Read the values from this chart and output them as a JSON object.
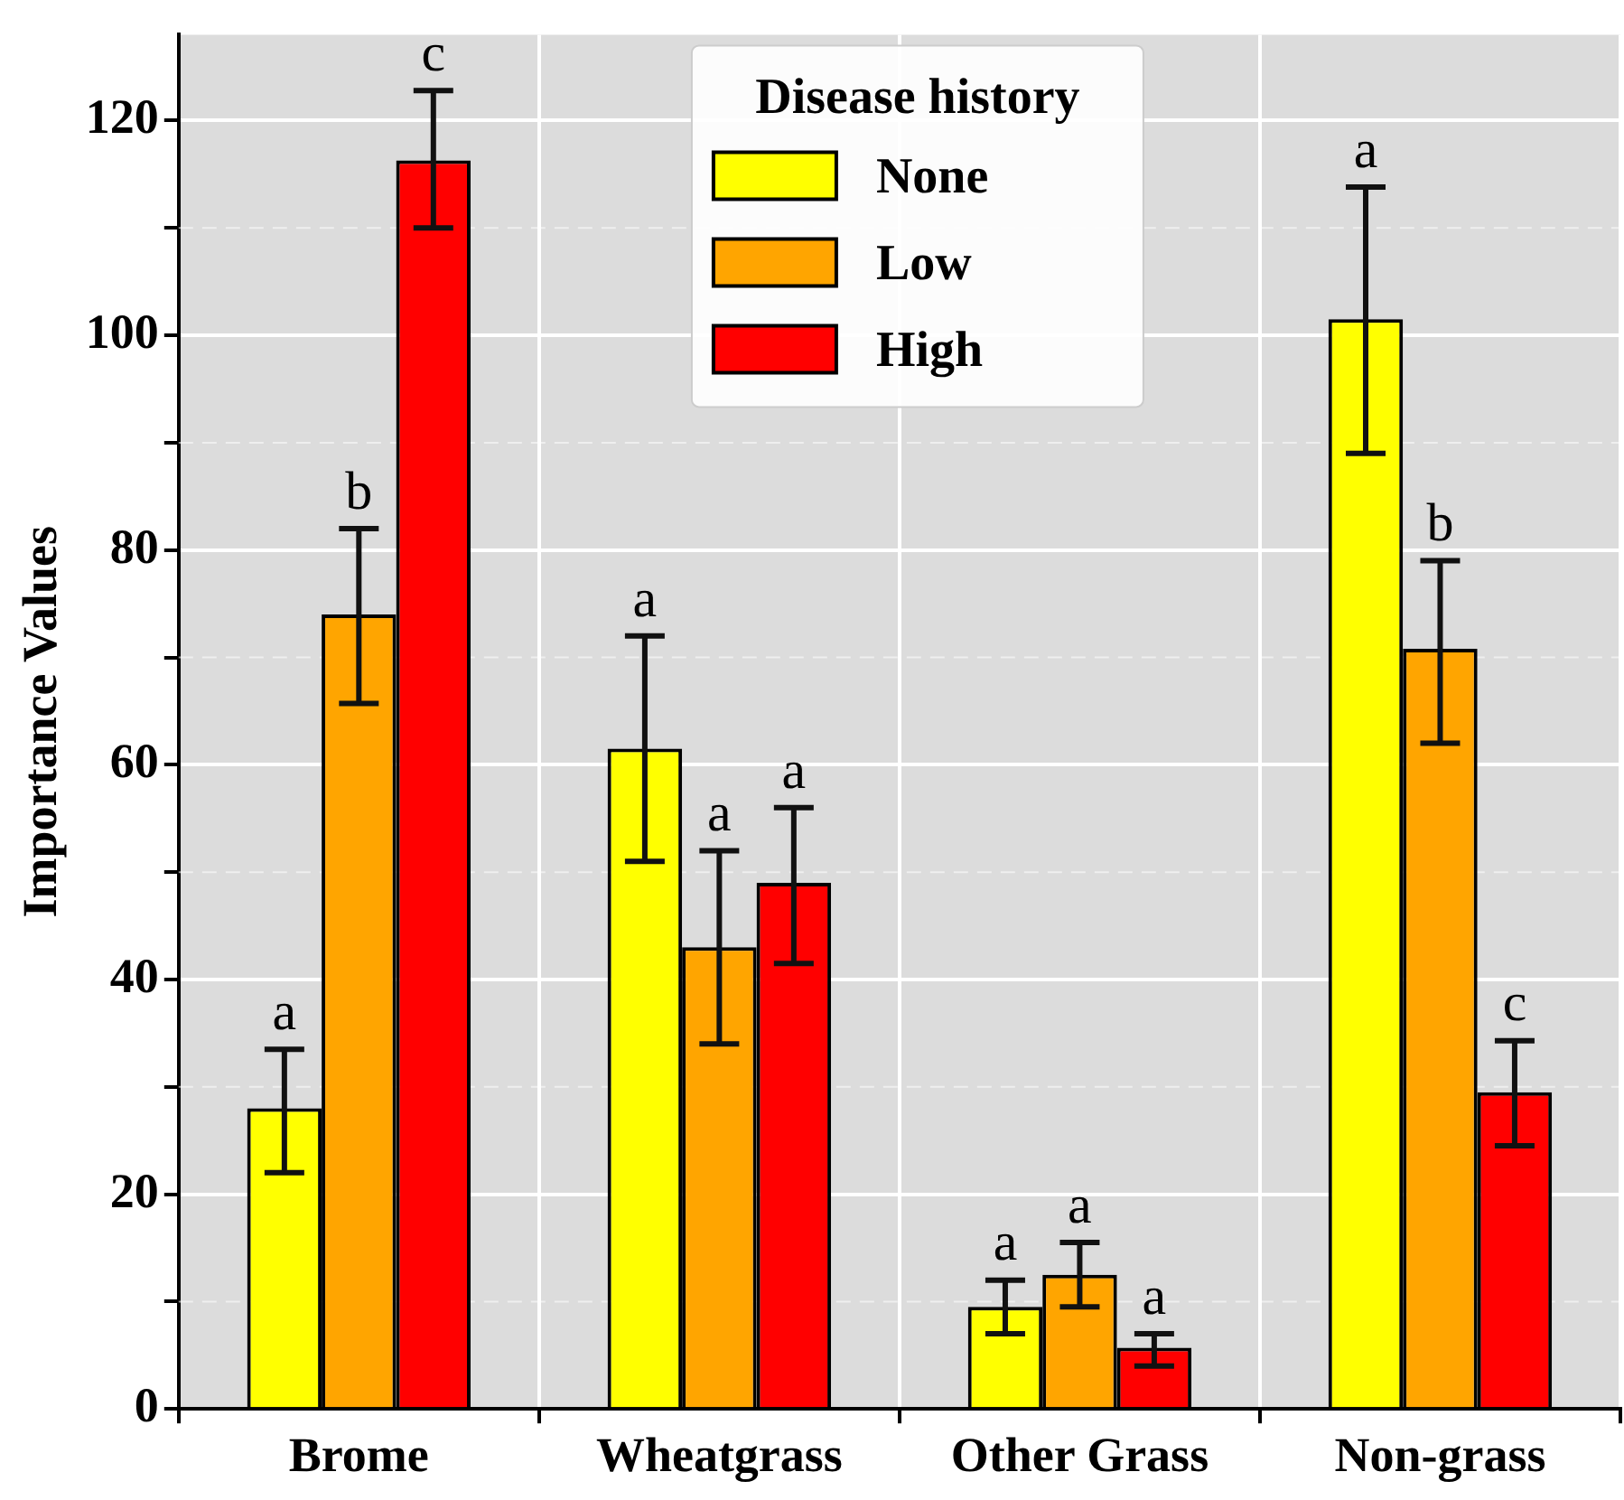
{
  "chart_data": {
    "type": "bar",
    "ylabel": "Importance Values",
    "legend_title": "Disease history",
    "legend": "top",
    "grid": true,
    "categories": [
      "Brome",
      "Wheatgrass",
      "Other Grass",
      "Non-grass"
    ],
    "ylim": [
      0,
      128
    ],
    "yticks": [
      0,
      {
        "value": 10,
        "label": null
      },
      20,
      {
        "value": 30,
        "label": null
      },
      40,
      {
        "value": 50,
        "label": null
      },
      60,
      {
        "value": 70,
        "label": null
      },
      80,
      {
        "value": 90,
        "label": null
      },
      100,
      {
        "value": 110,
        "label": null
      },
      120
    ],
    "series": [
      {
        "name": "None",
        "color": "#ffff00",
        "values": [
          28,
          61.5,
          9.5,
          101.5
        ],
        "errors": [
          [
            22,
            33.5
          ],
          [
            51,
            72
          ],
          [
            7,
            12
          ],
          [
            89,
            113.8
          ]
        ],
        "value_labels": [
          "a",
          "a",
          "a",
          "a"
        ]
      },
      {
        "name": "Low",
        "color": "#ffa500",
        "values": [
          74,
          43,
          12.5,
          70.8
        ],
        "errors": [
          [
            65.7,
            82
          ],
          [
            34,
            52
          ],
          [
            9.5,
            15.5
          ],
          [
            62,
            79
          ]
        ],
        "value_labels": [
          "b",
          "a",
          "a",
          "b"
        ]
      },
      {
        "name": "High",
        "color": "#ff0000",
        "values": [
          116.3,
          49,
          5.7,
          29.5
        ],
        "errors": [
          [
            110,
            122.8
          ],
          [
            41.5,
            56
          ],
          [
            4,
            7
          ],
          [
            24.5,
            34.3
          ]
        ],
        "value_labels": [
          "c",
          "a",
          "a",
          "c"
        ]
      }
    ]
  }
}
